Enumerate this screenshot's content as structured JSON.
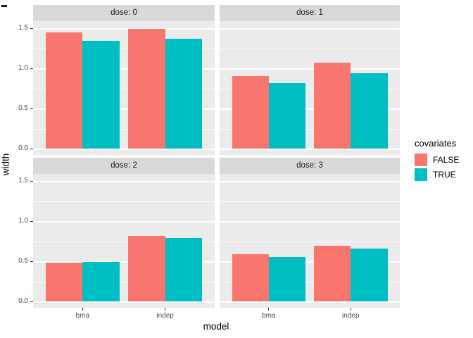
{
  "figure": {
    "x_axis_title": "model",
    "y_axis_title": "width",
    "y_tick_labels": [
      "1.5",
      "1.0",
      "0.5",
      "0.0"
    ],
    "x_tick_labels": [
      "bma",
      "indep"
    ],
    "strip_labels": [
      "dose: 0",
      "dose: 1",
      "dose: 2",
      "dose: 3"
    ],
    "legend": {
      "title": "covariates",
      "entries": [
        {
          "label": "FALSE",
          "color": "#F8766D"
        },
        {
          "label": "TRUE",
          "color": "#00BFC4"
        }
      ]
    },
    "colors": {
      "panel_bg": "#EBEBEB",
      "strip_bg": "#D9D9D9",
      "grid": "#FFFFFF",
      "tick_label": "#4D4D4D",
      "false_fill": "#F8766D",
      "true_fill": "#00BFC4"
    }
  },
  "chart_data": {
    "type": "bar",
    "grouping": "dodged",
    "facet_variable": "dose",
    "categories": [
      "bma",
      "indep"
    ],
    "xlabel": "model",
    "ylabel": "width",
    "ylim": [
      0,
      1.6
    ],
    "y_major_ticks": [
      0.0,
      0.5,
      1.0,
      1.5
    ],
    "y_minor_ticks": [
      0.25,
      0.75,
      1.25
    ],
    "legend_title": "covariates",
    "legend_position": "right",
    "grid": "on",
    "facets": [
      {
        "strip": "dose: 0",
        "series": [
          {
            "name": "FALSE",
            "values": [
              1.45,
              1.49
            ]
          },
          {
            "name": "TRUE",
            "values": [
              1.34,
              1.37
            ]
          }
        ]
      },
      {
        "strip": "dose: 1",
        "series": [
          {
            "name": "FALSE",
            "values": [
              0.9,
              1.07
            ]
          },
          {
            "name": "TRUE",
            "values": [
              0.82,
              0.94
            ]
          }
        ]
      },
      {
        "strip": "dose: 2",
        "series": [
          {
            "name": "FALSE",
            "values": [
              0.48,
              0.82
            ]
          },
          {
            "name": "TRUE",
            "values": [
              0.49,
              0.79
            ]
          }
        ]
      },
      {
        "strip": "dose: 3",
        "series": [
          {
            "name": "FALSE",
            "values": [
              0.59,
              0.69
            ]
          },
          {
            "name": "TRUE",
            "values": [
              0.55,
              0.66
            ]
          }
        ]
      }
    ]
  }
}
